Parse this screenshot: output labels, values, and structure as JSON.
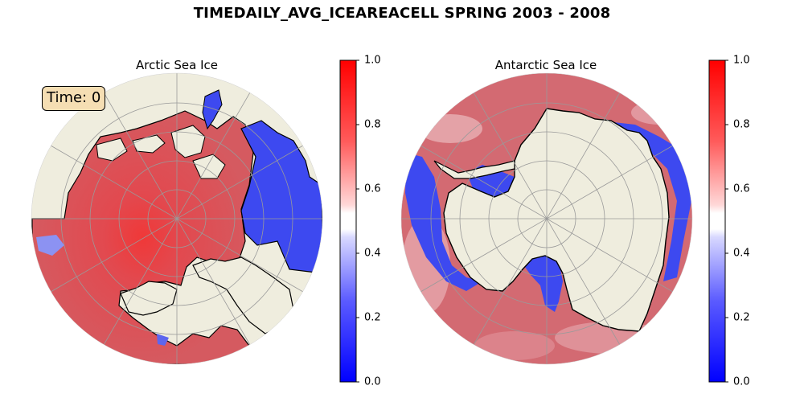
{
  "figure": {
    "suptitle": "TIMEDAILY_AVG_ICEAREACELL SPRING 2003 - 2008"
  },
  "panels": {
    "arctic": {
      "title": "Arctic Sea Ice",
      "time_label": "Time: 0"
    },
    "antarctic": {
      "title": "Antarctic Sea Ice"
    }
  },
  "colorbar": {
    "ticks": [
      "0.0",
      "0.2",
      "0.4",
      "0.6",
      "0.8",
      "1.0"
    ],
    "range": [
      0,
      1
    ],
    "colormap": "bwr (blue-white-red), 20 discrete levels"
  },
  "colors": {
    "ice_high": "#d6525a",
    "ice_low": "#3d49f0",
    "land": "#efedde",
    "grid": "#9a9a9a",
    "coast": "#000000",
    "badge_bg": "#f5deb3"
  }
}
